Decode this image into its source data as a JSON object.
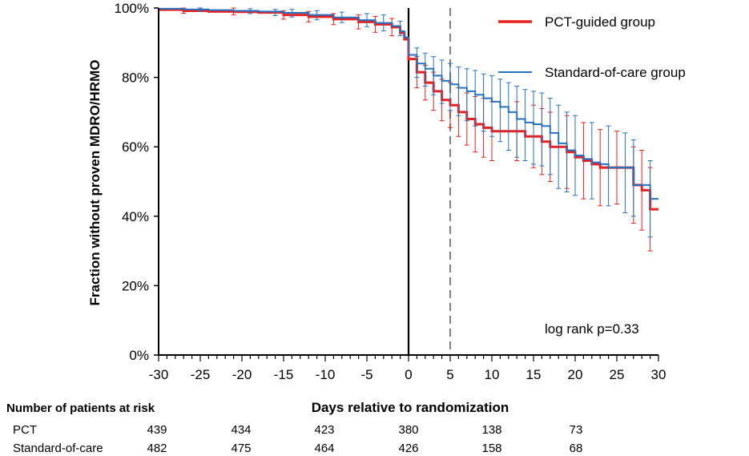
{
  "chart_data": {
    "type": "line",
    "subtype": "kaplan-meier step curves with error bars",
    "xlabel": "Days relative to randomization",
    "ylabel": "Fraction without proven MDRO/HRMO",
    "xlim": [
      -30,
      30
    ],
    "ylim": [
      0,
      100
    ],
    "x_ticks": [
      -30,
      -25,
      -20,
      -15,
      -10,
      -5,
      0,
      5,
      10,
      15,
      20,
      25,
      30
    ],
    "x_tick_labels": [
      "-30",
      "-25",
      "-20",
      "-15",
      "-10",
      "-5",
      "0",
      "5",
      "10",
      "15",
      "20",
      "25",
      "30"
    ],
    "y_ticks": [
      0,
      20,
      40,
      60,
      80,
      100
    ],
    "y_tick_labels": [
      "0%",
      "20%",
      "40%",
      "60%",
      "80%",
      "100%"
    ],
    "reference_lines": [
      {
        "x": 0,
        "style": "solid",
        "color": "#000000"
      },
      {
        "x": 5,
        "style": "dashed",
        "color": "#808080"
      }
    ],
    "annotation": "log rank p=0.33",
    "series": [
      {
        "name": "PCT-guided group",
        "color": "#e8201f",
        "points": [
          [
            -30,
            99.5
          ],
          [
            -27,
            99.2
          ],
          [
            -24,
            99.0
          ],
          [
            -21,
            98.9
          ],
          [
            -18,
            98.7
          ],
          [
            -15,
            98.0
          ],
          [
            -12,
            97.5
          ],
          [
            -9,
            96.8
          ],
          [
            -6,
            96.0
          ],
          [
            -4,
            95.3
          ],
          [
            -2,
            94.5
          ],
          [
            -1,
            92.8
          ],
          [
            -0.5,
            91.0
          ],
          [
            0,
            85.3
          ],
          [
            1,
            81.5
          ],
          [
            2,
            78.5
          ],
          [
            3,
            76.0
          ],
          [
            4,
            73.5
          ],
          [
            5,
            72.0
          ],
          [
            6,
            70.0
          ],
          [
            7,
            68.0
          ],
          [
            8,
            66.5
          ],
          [
            9,
            65.5
          ],
          [
            10,
            64.5
          ],
          [
            12,
            64.5
          ],
          [
            14,
            63.0
          ],
          [
            15,
            63.0
          ],
          [
            16,
            61.5
          ],
          [
            17,
            60.0
          ],
          [
            18,
            60.0
          ],
          [
            19,
            58.5
          ],
          [
            20,
            57.0
          ],
          [
            21,
            56.0
          ],
          [
            22,
            55.0
          ],
          [
            23,
            54.0
          ],
          [
            24,
            54.0
          ],
          [
            25,
            54.0
          ],
          [
            26,
            54.0
          ],
          [
            27,
            49.0
          ],
          [
            28,
            47.5
          ],
          [
            29,
            42.0
          ],
          [
            30,
            42.0
          ]
        ],
        "error_bars": [
          {
            "x": -27,
            "lo": 98.5,
            "hi": 100
          },
          {
            "x": -21,
            "lo": 98.0,
            "hi": 100
          },
          {
            "x": -15,
            "lo": 96.8,
            "hi": 99.2
          },
          {
            "x": -12,
            "lo": 96.0,
            "hi": 99.0
          },
          {
            "x": -9,
            "lo": 95.2,
            "hi": 98.4
          },
          {
            "x": -6,
            "lo": 94.0,
            "hi": 98.0
          },
          {
            "x": -4,
            "lo": 93.0,
            "hi": 97.6
          },
          {
            "x": -2,
            "lo": 92.0,
            "hi": 97.0
          },
          {
            "x": 1,
            "lo": 77.0,
            "hi": 86.0
          },
          {
            "x": 2,
            "lo": 73.5,
            "hi": 83.5
          },
          {
            "x": 3,
            "lo": 70.5,
            "hi": 81.5
          },
          {
            "x": 4,
            "lo": 67.5,
            "hi": 79.5
          },
          {
            "x": 5,
            "lo": 65.5,
            "hi": 78.5
          },
          {
            "x": 6,
            "lo": 63.0,
            "hi": 77.0
          },
          {
            "x": 7,
            "lo": 60.5,
            "hi": 75.5
          },
          {
            "x": 8,
            "lo": 58.5,
            "hi": 74.5
          },
          {
            "x": 9,
            "lo": 57.0,
            "hi": 74.0
          },
          {
            "x": 10,
            "lo": 56.0,
            "hi": 73.0
          },
          {
            "x": 13,
            "lo": 56.0,
            "hi": 73.0
          },
          {
            "x": 15,
            "lo": 54.0,
            "hi": 72.0
          },
          {
            "x": 16,
            "lo": 52.0,
            "hi": 71.0
          },
          {
            "x": 17,
            "lo": 50.0,
            "hi": 70.0
          },
          {
            "x": 19,
            "lo": 48.0,
            "hi": 69.0
          },
          {
            "x": 21,
            "lo": 45.0,
            "hi": 67.0
          },
          {
            "x": 23,
            "lo": 43.0,
            "hi": 65.0
          },
          {
            "x": 25,
            "lo": 43.5,
            "hi": 64.5
          },
          {
            "x": 27,
            "lo": 38.0,
            "hi": 60.0
          },
          {
            "x": 28,
            "lo": 36.0,
            "hi": 59.0
          },
          {
            "x": 29,
            "lo": 30.0,
            "hi": 54.0
          }
        ]
      },
      {
        "name": "Standard-of-care group",
        "color": "#2672c0",
        "points": [
          [
            -30,
            99.8
          ],
          [
            -27,
            99.6
          ],
          [
            -24,
            99.4
          ],
          [
            -21,
            99.2
          ],
          [
            -18,
            99.0
          ],
          [
            -15,
            98.6
          ],
          [
            -12,
            98.0
          ],
          [
            -9,
            97.3
          ],
          [
            -6,
            96.5
          ],
          [
            -4,
            95.7
          ],
          [
            -2,
            94.8
          ],
          [
            -1,
            93.3
          ],
          [
            -0.5,
            91.5
          ],
          [
            0,
            86.5
          ],
          [
            1,
            84.0
          ],
          [
            2,
            82.5
          ],
          [
            3,
            80.5
          ],
          [
            4,
            79.0
          ],
          [
            5,
            78.0
          ],
          [
            6,
            77.0
          ],
          [
            7,
            76.0
          ],
          [
            8,
            75.0
          ],
          [
            9,
            74.0
          ],
          [
            10,
            73.0
          ],
          [
            11,
            71.5
          ],
          [
            12,
            70.0
          ],
          [
            13,
            68.0
          ],
          [
            14,
            67.0
          ],
          [
            15,
            66.5
          ],
          [
            16,
            66.0
          ],
          [
            17,
            64.0
          ],
          [
            18,
            61.0
          ],
          [
            19,
            59.0
          ],
          [
            20,
            57.5
          ],
          [
            21,
            56.5
          ],
          [
            22,
            55.5
          ],
          [
            23,
            55.0
          ],
          [
            24,
            54.0
          ],
          [
            25,
            54.0
          ],
          [
            26,
            54.0
          ],
          [
            27,
            49.0
          ],
          [
            28,
            49.0
          ],
          [
            29,
            45.0
          ],
          [
            30,
            45.0
          ]
        ],
        "error_bars": [
          {
            "x": -25,
            "lo": 99.0,
            "hi": 100
          },
          {
            "x": -19,
            "lo": 98.4,
            "hi": 99.8
          },
          {
            "x": -16,
            "lo": 97.8,
            "hi": 99.6
          },
          {
            "x": -14,
            "lo": 97.4,
            "hi": 99.6
          },
          {
            "x": -11,
            "lo": 96.6,
            "hi": 99.2
          },
          {
            "x": -8,
            "lo": 95.8,
            "hi": 98.8
          },
          {
            "x": -5,
            "lo": 94.6,
            "hi": 98.4
          },
          {
            "x": -3,
            "lo": 93.4,
            "hi": 98.0
          },
          {
            "x": -1,
            "lo": 92.0,
            "hi": 96.2
          },
          {
            "x": 1,
            "lo": 80.0,
            "hi": 88.5
          },
          {
            "x": 2,
            "lo": 77.5,
            "hi": 87.0
          },
          {
            "x": 3,
            "lo": 75.0,
            "hi": 86.0
          },
          {
            "x": 4,
            "lo": 72.5,
            "hi": 85.0
          },
          {
            "x": 5,
            "lo": 70.5,
            "hi": 84.0
          },
          {
            "x": 6,
            "lo": 69.0,
            "hi": 83.0
          },
          {
            "x": 7,
            "lo": 67.5,
            "hi": 82.5
          },
          {
            "x": 8,
            "lo": 66.0,
            "hi": 82.0
          },
          {
            "x": 9,
            "lo": 64.5,
            "hi": 81.0
          },
          {
            "x": 10,
            "lo": 63.0,
            "hi": 80.5
          },
          {
            "x": 11,
            "lo": 61.5,
            "hi": 79.5
          },
          {
            "x": 12,
            "lo": 59.0,
            "hi": 78.5
          },
          {
            "x": 13,
            "lo": 57.0,
            "hi": 77.5
          },
          {
            "x": 14,
            "lo": 56.0,
            "hi": 76.5
          },
          {
            "x": 15,
            "lo": 55.0,
            "hi": 76.0
          },
          {
            "x": 16,
            "lo": 54.5,
            "hi": 75.5
          },
          {
            "x": 17,
            "lo": 52.0,
            "hi": 74.0
          },
          {
            "x": 18,
            "lo": 48.0,
            "hi": 72.0
          },
          {
            "x": 19,
            "lo": 47.0,
            "hi": 70.0
          },
          {
            "x": 20,
            "lo": 46.0,
            "hi": 69.0
          },
          {
            "x": 22,
            "lo": 45.0,
            "hi": 67.0
          },
          {
            "x": 24,
            "lo": 43.0,
            "hi": 66.0
          },
          {
            "x": 26,
            "lo": 41.0,
            "hi": 64.0
          },
          {
            "x": 27,
            "lo": 40.0,
            "hi": 62.0
          },
          {
            "x": 29,
            "lo": 34.0,
            "hi": 56.0
          }
        ]
      }
    ]
  },
  "risk_table": {
    "title": "Number of patients at risk",
    "columns": [
      "-30",
      "-20",
      "-10",
      "0",
      "10",
      "20"
    ],
    "rows": [
      {
        "label": "PCT",
        "values": [
          "439",
          "434",
          "423",
          "380",
          "138",
          "73"
        ]
      },
      {
        "label": "Standard-of-care",
        "values": [
          "482",
          "475",
          "464",
          "426",
          "158",
          "68"
        ]
      }
    ]
  }
}
